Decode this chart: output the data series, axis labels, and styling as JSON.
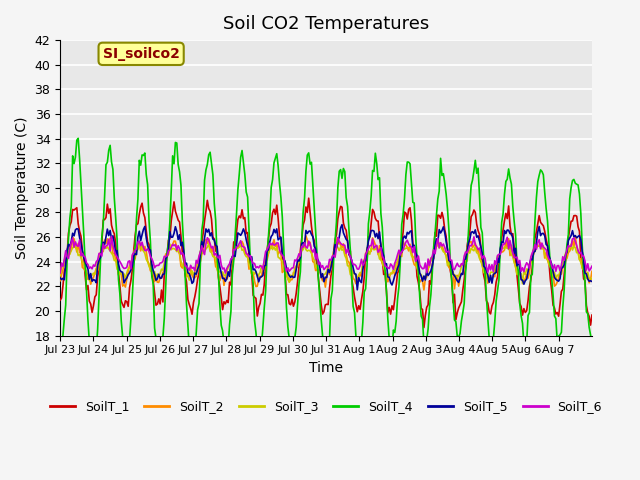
{
  "title": "Soil CO2 Temperatures",
  "xlabel": "Time",
  "ylabel": "Soil Temperature (C)",
  "ylim": [
    18,
    42
  ],
  "annotation": "SI_soilco2",
  "annotation_color": "#8B0000",
  "annotation_bg": "#FFFF99",
  "bg_color": "#E8E8E8",
  "grid_color": "#FFFFFF",
  "xtick_labels": [
    "Jul 23",
    "Jul 24",
    "Jul 25",
    "Jul 26",
    "Jul 27",
    "Jul 28",
    "Jul 29",
    "Jul 30",
    "Jul 31",
    "Aug 1",
    "Aug 2",
    "Aug 3",
    "Aug 4",
    "Aug 5",
    "Aug 6",
    "Aug 7"
  ],
  "series_colors": {
    "SoilT_1": "#CC0000",
    "SoilT_2": "#FF8C00",
    "SoilT_3": "#CCCC00",
    "SoilT_4": "#00CC00",
    "SoilT_5": "#000099",
    "SoilT_6": "#CC00CC"
  },
  "legend_labels": [
    "SoilT_1",
    "SoilT_2",
    "SoilT_3",
    "SoilT_4",
    "SoilT_5",
    "SoilT_6"
  ]
}
